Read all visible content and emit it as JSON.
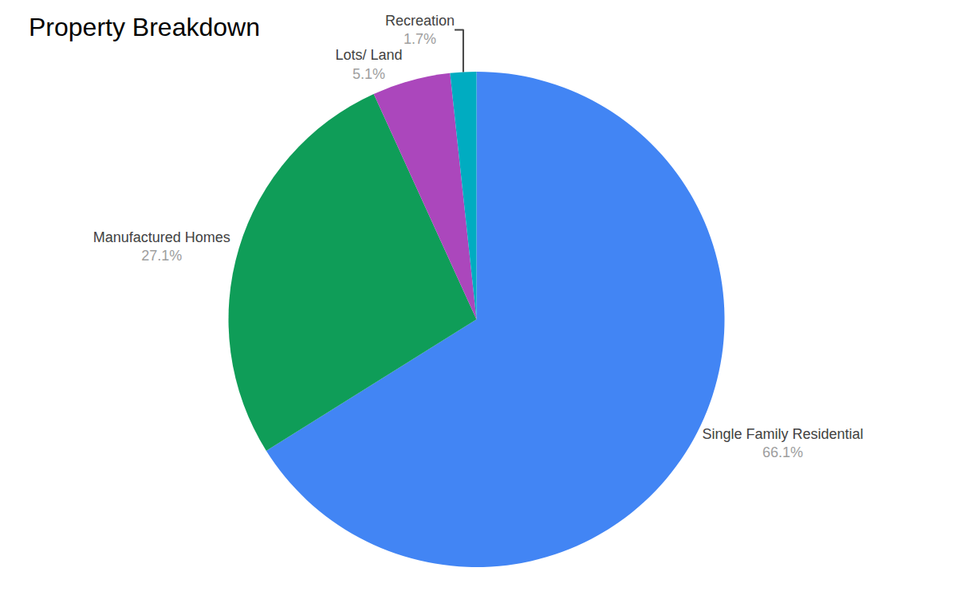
{
  "chart_data": {
    "type": "pie",
    "title": "Property Breakdown",
    "categories": [
      "Single Family Residential",
      "Manufactured Homes",
      "Lots/ Land",
      "Recreation"
    ],
    "values": [
      66.1,
      27.1,
      5.1,
      1.7
    ],
    "value_labels": [
      "66.1%",
      "27.1%",
      "5.1%",
      "1.7%"
    ],
    "colors": [
      "#4285f4",
      "#0f9d58",
      "#ab47bc",
      "#00acc1"
    ],
    "data_labels": true
  }
}
